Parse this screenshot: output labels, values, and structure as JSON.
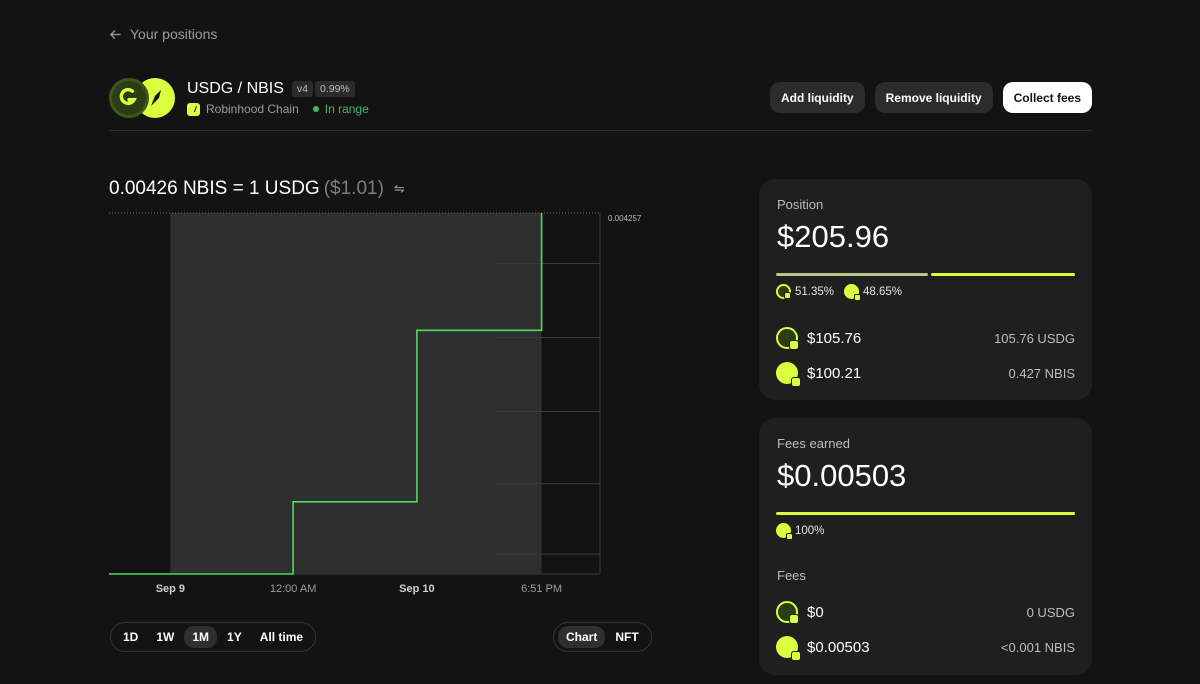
{
  "nav": {
    "back_label": "Your positions"
  },
  "pool": {
    "name": "USDG / NBIS",
    "version": "v4",
    "fee_tier": "0.99%",
    "chain": "Robinhood Chain",
    "range_status": "In range"
  },
  "actions": {
    "add": "Add liquidity",
    "remove": "Remove liquidity",
    "collect": "Collect fees"
  },
  "price": {
    "rate": "0.00426 NBIS = 1 USDG",
    "usd": "($1.01)"
  },
  "chart_data": {
    "type": "line",
    "x_ticks": [
      "Sep 9",
      "12:00 AM",
      "Sep 10",
      "6:51 PM"
    ],
    "y_max_label": "0.004257",
    "points": [
      {
        "x": 0.0,
        "y": 0.0
      },
      {
        "x": 0.375,
        "y": 0.0
      },
      {
        "x": 0.375,
        "y": 0.2
      },
      {
        "x": 0.627,
        "y": 0.2
      },
      {
        "x": 0.627,
        "y": 0.675
      },
      {
        "x": 0.881,
        "y": 0.675
      },
      {
        "x": 0.881,
        "y": 1.0
      }
    ],
    "range_band": {
      "start": 0.125,
      "end": 0.881
    },
    "color": "#4cd964"
  },
  "time_ranges": {
    "items": [
      "1D",
      "1W",
      "1M",
      "1Y",
      "All time"
    ],
    "active": "1M"
  },
  "view_toggle": {
    "items": [
      "Chart",
      "NFT"
    ],
    "active": "Chart"
  },
  "position": {
    "label": "Position",
    "value": "$205.96",
    "usdg_pct": "51.35%",
    "nbis_pct": "48.65%",
    "usdg_share": 0.5135,
    "tokens": [
      {
        "symbol": "USDG",
        "usd": "$105.76",
        "amount": "105.76 USDG"
      },
      {
        "symbol": "NBIS",
        "usd": "$100.21",
        "amount": "0.427 NBIS"
      }
    ]
  },
  "fees": {
    "label": "Fees earned",
    "value": "$0.00503",
    "nbis_pct": "100%",
    "sub_label": "Fees",
    "tokens": [
      {
        "symbol": "USDG",
        "usd": "$0",
        "amount": "0 USDG"
      },
      {
        "symbol": "NBIS",
        "usd": "$0.00503",
        "amount": "<0.001 NBIS"
      }
    ]
  },
  "colors": {
    "accent": "#d9ff3f",
    "in_range": "#40b66b",
    "usdg_bar": "#b7c98a",
    "background": "#131313",
    "card": "#1f1f1f"
  }
}
